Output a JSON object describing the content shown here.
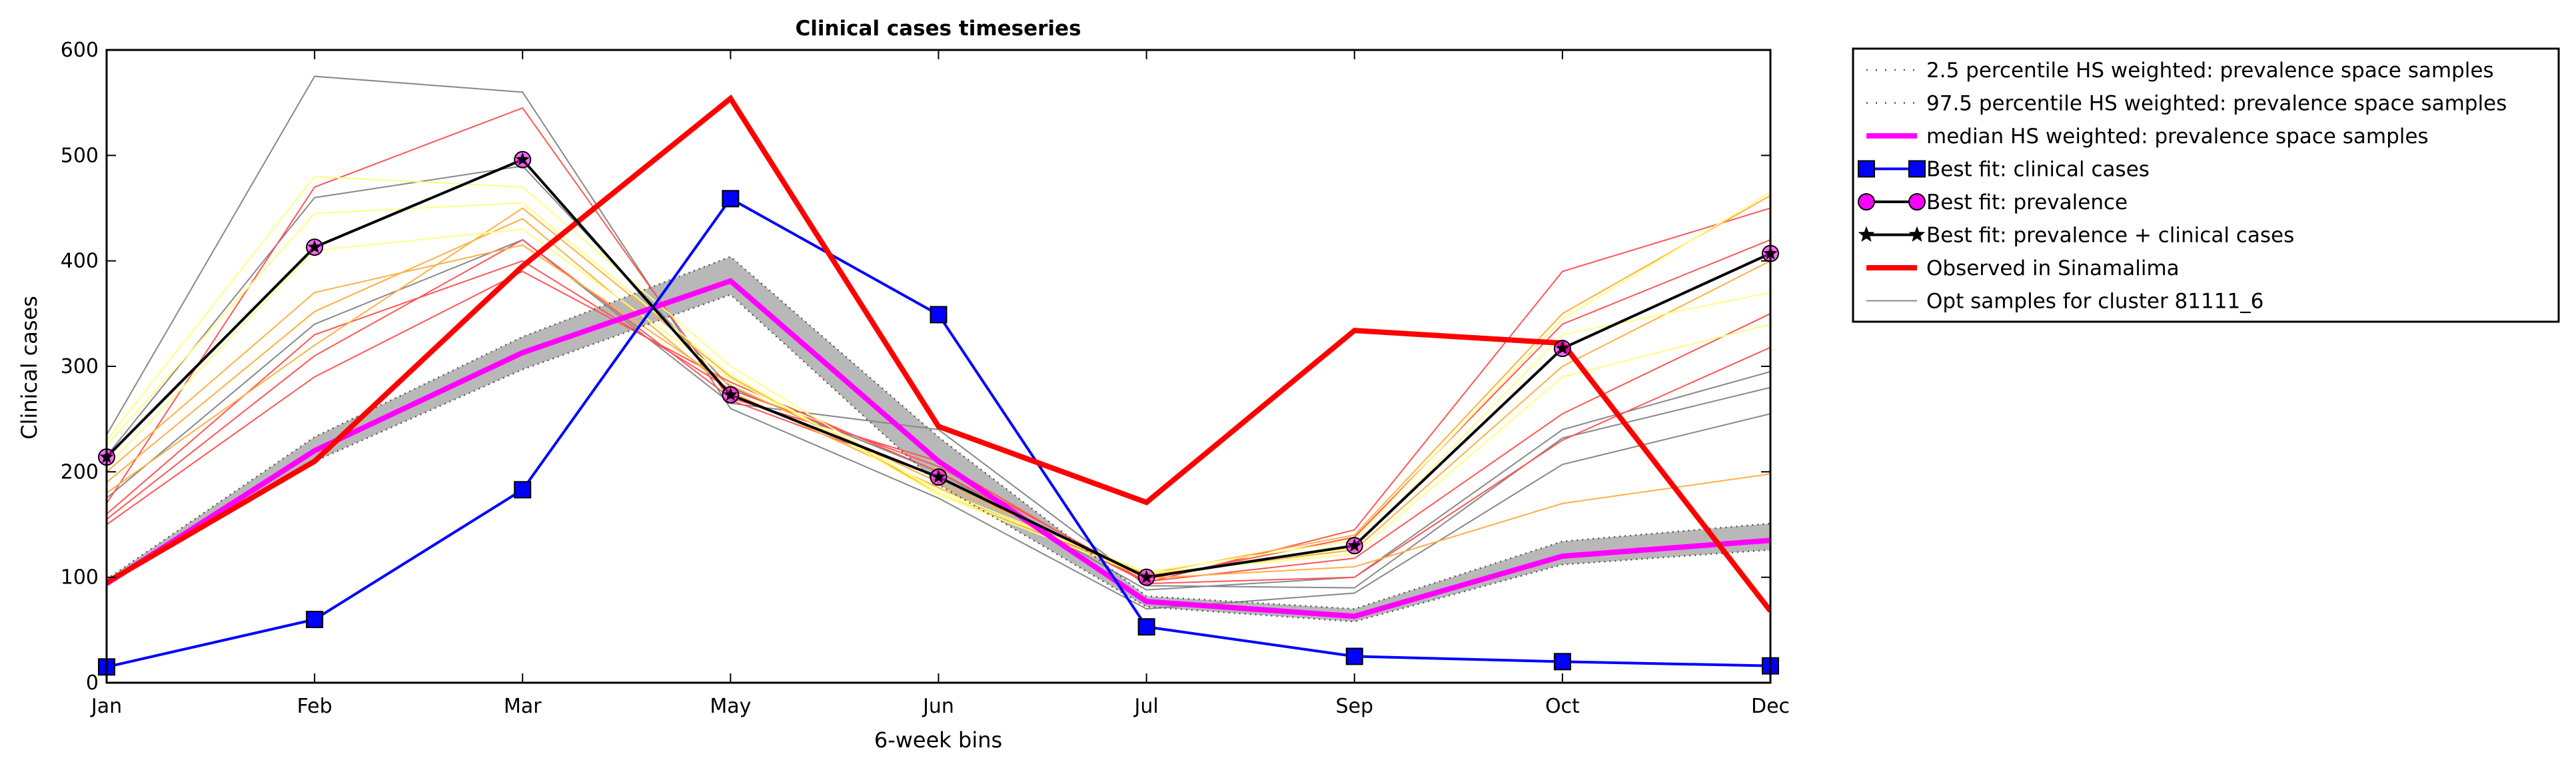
{
  "chart_data": {
    "type": "line",
    "title": "Clinical cases timeseries",
    "xlabel": "6-week bins",
    "ylabel": "Clinical cases",
    "x": [
      "Jan",
      "Feb",
      "Mar",
      "May",
      "Jun",
      "Jul",
      "Sep",
      "Oct",
      "Dec"
    ],
    "ylim": [
      0,
      600
    ],
    "yticks": [
      0,
      100,
      200,
      300,
      400,
      500,
      600
    ],
    "grid": false,
    "legend_position": "outside-right",
    "band": {
      "lower": [
        93,
        210,
        297,
        368,
        188,
        72,
        58,
        112,
        126
      ],
      "upper": [
        98,
        233,
        328,
        404,
        233,
        82,
        70,
        134,
        151
      ],
      "color": "#b8b8b8"
    },
    "series": [
      {
        "name": "2.5 percentile HS weighted: prevalence space samples",
        "style": "dotted",
        "color": "#555555",
        "values": [
          93,
          210,
          297,
          368,
          188,
          72,
          58,
          112,
          126
        ]
      },
      {
        "name": "97.5 percentile HS weighted: prevalence space samples",
        "style": "dotted",
        "color": "#555555",
        "values": [
          98,
          233,
          328,
          404,
          233,
          82,
          70,
          134,
          151
        ]
      },
      {
        "name": "median HS weighted: prevalence space samples",
        "style": "solid",
        "color": "#ff00ff",
        "values": [
          94,
          220,
          313,
          381,
          210,
          77,
          63,
          120,
          135
        ]
      },
      {
        "name": "Best fit: clinical cases",
        "style": "solid",
        "color": "#0000ff",
        "marker": "square",
        "values": [
          15,
          60,
          183,
          459,
          349,
          53,
          25,
          20,
          16
        ]
      },
      {
        "name": "Best fit: prevalence",
        "style": "solid",
        "color": "#000000",
        "marker": "circle",
        "values": [
          214,
          413,
          496,
          273,
          195,
          100,
          130,
          317,
          407
        ]
      },
      {
        "name": "Best fit: prevalence + clinical cases",
        "style": "solid",
        "color": "#000000",
        "marker": "star",
        "values": [
          214,
          413,
          496,
          273,
          195,
          100,
          130,
          317,
          407
        ]
      },
      {
        "name": "Observed in Sinamalima",
        "style": "solid",
        "color": "#ff0000",
        "values": [
          95,
          210,
          395,
          554,
          243,
          171,
          334,
          322,
          68
        ]
      },
      {
        "name": "Opt samples for cluster 81111_6",
        "style": "solid",
        "color": "#888888",
        "values": [
          235,
          575,
          560,
          260,
          175,
          70,
          85,
          207,
          255
        ]
      }
    ],
    "samples": [
      {
        "color": "#888888",
        "values": [
          235,
          575,
          560,
          260,
          175,
          70,
          85,
          207,
          255
        ]
      },
      {
        "color": "#888888",
        "values": [
          215,
          460,
          490,
          280,
          200,
          88,
          100,
          240,
          295
        ]
      },
      {
        "color": "#888888",
        "values": [
          175,
          340,
          420,
          265,
          240,
          92,
          90,
          232,
          280
        ]
      },
      {
        "color": "#ff5555",
        "values": [
          170,
          470,
          545,
          268,
          195,
          95,
          145,
          390,
          450
        ]
      },
      {
        "color": "#ff5555",
        "values": [
          160,
          330,
          400,
          278,
          205,
          98,
          138,
          340,
          420
        ]
      },
      {
        "color": "#ff5555",
        "values": [
          150,
          290,
          390,
          285,
          200,
          96,
          118,
          255,
          350
        ]
      },
      {
        "color": "#ff5555",
        "values": [
          155,
          310,
          420,
          270,
          210,
          94,
          100,
          230,
          318
        ]
      },
      {
        "color": "#ffb040",
        "values": [
          200,
          370,
          415,
          282,
          190,
          103,
          140,
          350,
          462
        ]
      },
      {
        "color": "#ffb040",
        "values": [
          180,
          320,
          450,
          290,
          180,
          102,
          126,
          300,
          400
        ]
      },
      {
        "color": "#ffb040",
        "values": [
          190,
          352,
          440,
          276,
          185,
          99,
          110,
          170,
          198
        ]
      },
      {
        "color": "#ffff80",
        "values": [
          230,
          480,
          470,
          300,
          180,
          105,
          135,
          345,
          465
        ]
      },
      {
        "color": "#ffff80",
        "values": [
          225,
          445,
          455,
          292,
          178,
          101,
          128,
          330,
          370
        ]
      },
      {
        "color": "#ffff80",
        "values": [
          205,
          410,
          430,
          288,
          183,
          104,
          122,
          290,
          340
        ]
      }
    ]
  }
}
